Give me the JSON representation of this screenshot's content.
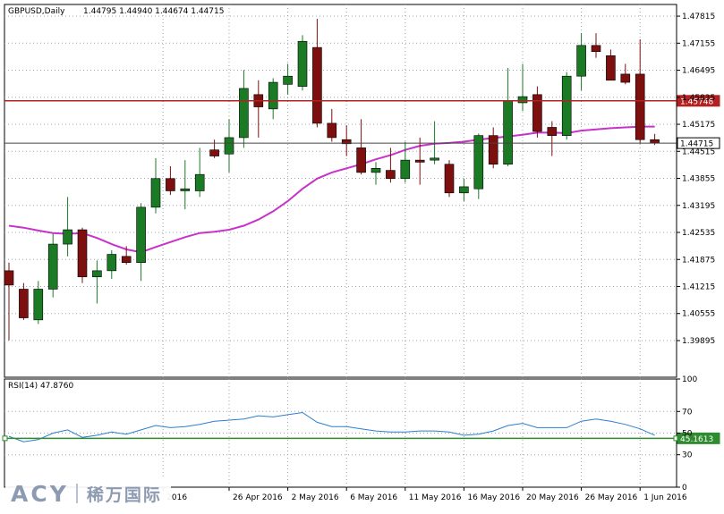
{
  "header": {
    "symbol": "GBPUSD,Daily",
    "ohlc": "1.44795 1.44940 1.44674 1.44715"
  },
  "rsi_label": "RSI(14) 47.8760",
  "colors": {
    "bull": "#1b7a24",
    "bear": "#7d0f0f",
    "ma": "#c832c8",
    "rsi": "#2a7fd0",
    "hline_red": "#b22222",
    "hline_green": "#2e8b2e",
    "grid": "#9aa4b4",
    "axis": "#000000"
  },
  "logo": {
    "brand": "ACY",
    "cn": "稀万国际"
  },
  "chart_data": [
    {
      "type": "candlestick",
      "title": "GBPUSD,Daily",
      "ylim": [
        1.39,
        1.481
      ],
      "y_ticks": [
        "1.47815",
        "1.47155",
        "1.46495",
        "1.45835",
        "1.45175",
        "1.44515",
        "1.43855",
        "1.43195",
        "1.42535",
        "1.41875",
        "1.41215",
        "1.40555",
        "1.39895"
      ],
      "x_ticks": [
        {
          "index": 10.5,
          "label": "2016"
        },
        {
          "index": 15,
          "label": "26 Apr 2016"
        },
        {
          "index": 19,
          "label": "2 May 2016"
        },
        {
          "index": 23,
          "label": "6 May 2016"
        },
        {
          "index": 27,
          "label": "11 May 2016"
        },
        {
          "index": 31,
          "label": "16 May 2016"
        },
        {
          "index": 35,
          "label": "20 May 2016"
        },
        {
          "index": 39,
          "label": "26 May 2016"
        },
        {
          "index": 43,
          "label": "1 Jun 2016"
        }
      ],
      "candles": [
        {
          "o": 1.416,
          "h": 1.418,
          "l": 1.399,
          "c": 1.4125
        },
        {
          "o": 1.4115,
          "h": 1.413,
          "l": 1.404,
          "c": 1.4045
        },
        {
          "o": 1.404,
          "h": 1.4135,
          "l": 1.403,
          "c": 1.4115
        },
        {
          "o": 1.4115,
          "h": 1.425,
          "l": 1.4095,
          "c": 1.4225
        },
        {
          "o": 1.4225,
          "h": 1.434,
          "l": 1.4195,
          "c": 1.426
        },
        {
          "o": 1.426,
          "h": 1.4265,
          "l": 1.413,
          "c": 1.4145
        },
        {
          "o": 1.4145,
          "h": 1.4185,
          "l": 1.408,
          "c": 1.416
        },
        {
          "o": 1.416,
          "h": 1.421,
          "l": 1.414,
          "c": 1.42
        },
        {
          "o": 1.4195,
          "h": 1.422,
          "l": 1.4175,
          "c": 1.418
        },
        {
          "o": 1.418,
          "h": 1.4325,
          "l": 1.4135,
          "c": 1.4315
        },
        {
          "o": 1.4315,
          "h": 1.4435,
          "l": 1.43,
          "c": 1.4385
        },
        {
          "o": 1.4385,
          "h": 1.4415,
          "l": 1.4345,
          "c": 1.4355
        },
        {
          "o": 1.4355,
          "h": 1.443,
          "l": 1.431,
          "c": 1.436
        },
        {
          "o": 1.4355,
          "h": 1.446,
          "l": 1.434,
          "c": 1.4395
        },
        {
          "o": 1.4455,
          "h": 1.448,
          "l": 1.4435,
          "c": 1.444
        },
        {
          "o": 1.4445,
          "h": 1.453,
          "l": 1.44,
          "c": 1.4485
        },
        {
          "o": 1.4485,
          "h": 1.465,
          "l": 1.446,
          "c": 1.4605
        },
        {
          "o": 1.459,
          "h": 1.4625,
          "l": 1.4485,
          "c": 1.456
        },
        {
          "o": 1.4555,
          "h": 1.463,
          "l": 1.453,
          "c": 1.462
        },
        {
          "o": 1.4615,
          "h": 1.4665,
          "l": 1.459,
          "c": 1.4635
        },
        {
          "o": 1.461,
          "h": 1.4735,
          "l": 1.46,
          "c": 1.472
        },
        {
          "o": 1.4705,
          "h": 1.4775,
          "l": 1.451,
          "c": 1.452
        },
        {
          "o": 1.452,
          "h": 1.4555,
          "l": 1.4475,
          "c": 1.4485
        },
        {
          "o": 1.448,
          "h": 1.4515,
          "l": 1.444,
          "c": 1.447
        },
        {
          "o": 1.446,
          "h": 1.453,
          "l": 1.4395,
          "c": 1.44
        },
        {
          "o": 1.44,
          "h": 1.4425,
          "l": 1.437,
          "c": 1.441
        },
        {
          "o": 1.4405,
          "h": 1.446,
          "l": 1.4375,
          "c": 1.4385
        },
        {
          "o": 1.4385,
          "h": 1.4475,
          "l": 1.4375,
          "c": 1.443
        },
        {
          "o": 1.443,
          "h": 1.4485,
          "l": 1.437,
          "c": 1.4425
        },
        {
          "o": 1.443,
          "h": 1.4525,
          "l": 1.442,
          "c": 1.4435
        },
        {
          "o": 1.442,
          "h": 1.443,
          "l": 1.434,
          "c": 1.435
        },
        {
          "o": 1.435,
          "h": 1.4385,
          "l": 1.433,
          "c": 1.4365
        },
        {
          "o": 1.436,
          "h": 1.4495,
          "l": 1.4335,
          "c": 1.449
        },
        {
          "o": 1.449,
          "h": 1.451,
          "l": 1.441,
          "c": 1.442
        },
        {
          "o": 1.442,
          "h": 1.4655,
          "l": 1.4415,
          "c": 1.4575
        },
        {
          "o": 1.457,
          "h": 1.4665,
          "l": 1.455,
          "c": 1.4585
        },
        {
          "o": 1.459,
          "h": 1.461,
          "l": 1.4485,
          "c": 1.45
        },
        {
          "o": 1.451,
          "h": 1.4525,
          "l": 1.444,
          "c": 1.449
        },
        {
          "o": 1.449,
          "h": 1.4645,
          "l": 1.448,
          "c": 1.4635
        },
        {
          "o": 1.4635,
          "h": 1.474,
          "l": 1.46,
          "c": 1.471
        },
        {
          "o": 1.471,
          "h": 1.474,
          "l": 1.468,
          "c": 1.4695
        },
        {
          "o": 1.4685,
          "h": 1.47,
          "l": 1.4625,
          "c": 1.4625
        },
        {
          "o": 1.464,
          "h": 1.4665,
          "l": 1.4615,
          "c": 1.462
        },
        {
          "o": 1.464,
          "h": 1.4725,
          "l": 1.447,
          "c": 1.448
        },
        {
          "o": 1.448,
          "h": 1.4494,
          "l": 1.4467,
          "c": 1.4472
        }
      ],
      "ma": [
        1.427,
        1.4265,
        1.4258,
        1.4252,
        1.425,
        1.4252,
        1.424,
        1.4225,
        1.4212,
        1.4205,
        1.4218,
        1.423,
        1.4242,
        1.4252,
        1.4255,
        1.426,
        1.427,
        1.4285,
        1.4305,
        1.433,
        1.436,
        1.4385,
        1.44,
        1.441,
        1.442,
        1.4432,
        1.4442,
        1.4455,
        1.4465,
        1.447,
        1.4472,
        1.4475,
        1.448,
        1.4484,
        1.4488,
        1.4492,
        1.4497,
        1.4497,
        1.4496,
        1.4502,
        1.4505,
        1.4508,
        1.451,
        1.4512,
        1.4512
      ],
      "hlines": [
        {
          "value": 1.45748,
          "label": "1.45748",
          "color": "red"
        },
        {
          "value": 1.44715,
          "label": "1.44715",
          "color": "black"
        }
      ]
    },
    {
      "type": "line",
      "title": "RSI(14) 47.8760",
      "ylim": [
        0,
        100
      ],
      "y_ticks": [
        "100",
        "70",
        "50",
        "30",
        "0"
      ],
      "values": [
        47,
        42,
        44,
        50,
        53,
        46,
        48,
        51,
        49,
        53,
        57,
        55,
        56,
        58,
        61,
        62,
        63,
        66,
        65,
        67,
        69,
        60,
        56,
        56,
        54,
        52,
        51,
        51,
        52,
        52,
        51,
        48,
        49,
        52,
        57,
        59,
        55,
        55,
        55,
        61,
        63,
        61,
        58,
        54,
        48
      ],
      "hline": {
        "value": 45.1613,
        "label": "45.1613"
      }
    }
  ]
}
